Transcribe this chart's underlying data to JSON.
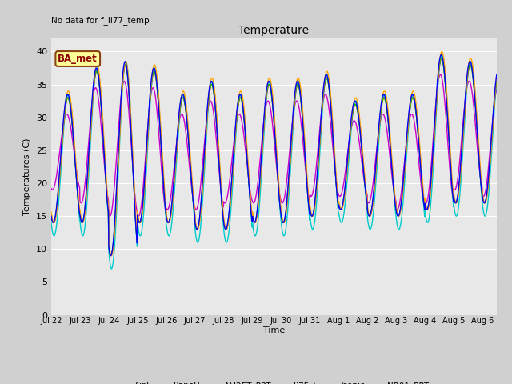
{
  "title": "Temperature",
  "ylabel": "Temperatures (C)",
  "xlabel": "Time",
  "note": "No data for f_li77_temp",
  "legend_label": "BA_met",
  "ylim": [
    0,
    42
  ],
  "yticks": [
    0,
    5,
    10,
    15,
    20,
    25,
    30,
    35,
    40
  ],
  "series": {
    "AirT": {
      "color": "#ff0000",
      "lw": 1.0
    },
    "PanelT": {
      "color": "#0000ff",
      "lw": 1.0
    },
    "AM25T_PRT": {
      "color": "#00cc00",
      "lw": 1.0
    },
    "li75_t": {
      "color": "#ffa500",
      "lw": 1.0
    },
    "Tsonic": {
      "color": "#cc00cc",
      "lw": 1.0
    },
    "NR01_PRT": {
      "color": "#00cccc",
      "lw": 1.0
    }
  },
  "fig_bg": "#d0d0d0",
  "plot_bg": "#e8e8e8",
  "grid_color": "#ffffff",
  "n_days": 15.5,
  "tick_labels": [
    "Jul 22",
    "Jul 23",
    "Jul 24",
    "Jul 25",
    "Jul 26",
    "Jul 27",
    "Jul 28",
    "Jul 29",
    "Jul 30",
    "Jul 31",
    "Aug 1",
    "Aug 2",
    "Aug 3",
    "Aug 4",
    "Aug 5",
    "Aug 6"
  ]
}
